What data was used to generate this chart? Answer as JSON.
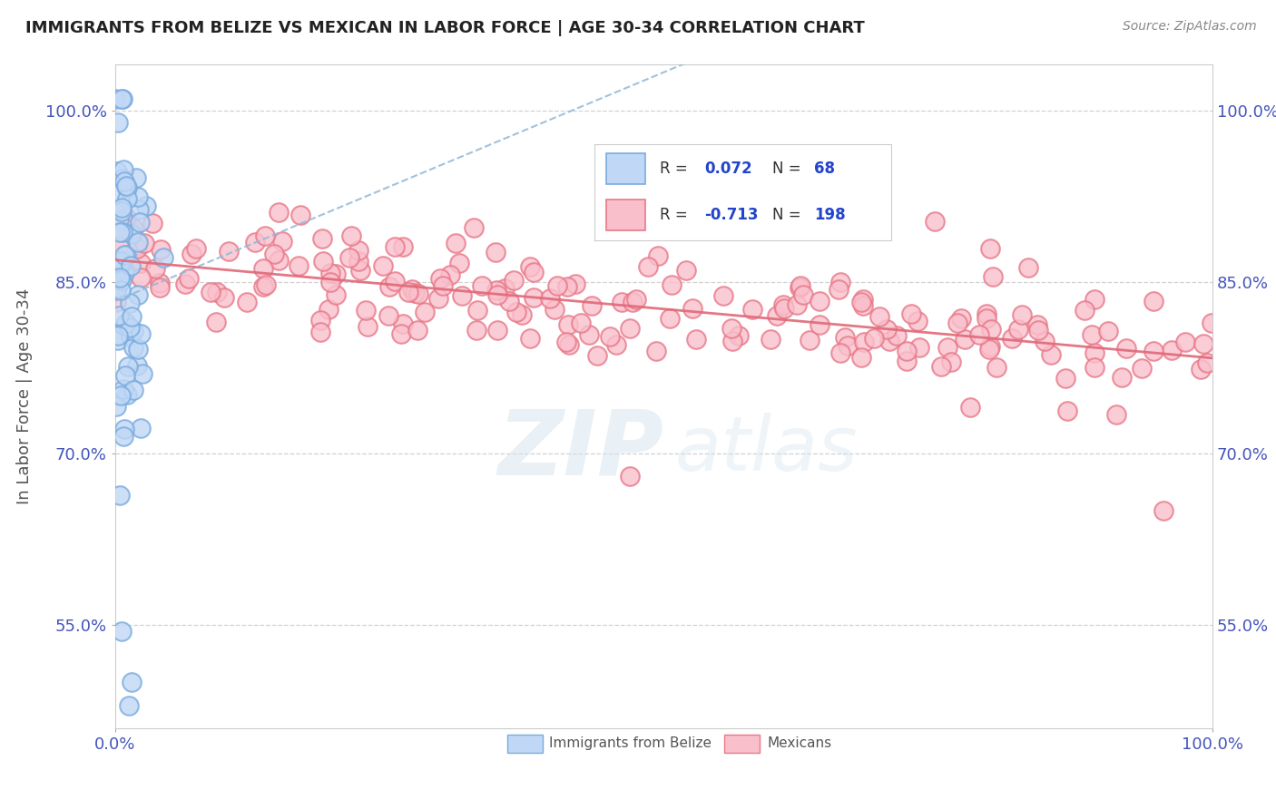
{
  "title": "IMMIGRANTS FROM BELIZE VS MEXICAN IN LABOR FORCE | AGE 30-34 CORRELATION CHART",
  "source_text": "Source: ZipAtlas.com",
  "ylabel": "In Labor Force | Age 30-34",
  "xlim": [
    0.0,
    1.0
  ],
  "ylim": [
    0.46,
    1.04
  ],
  "yticks": [
    0.55,
    0.7,
    0.85,
    1.0
  ],
  "ytick_labels": [
    "55.0%",
    "70.0%",
    "85.0%",
    "100.0%"
  ],
  "xticks": [
    0.0,
    1.0
  ],
  "xtick_labels": [
    "0.0%",
    "100.0%"
  ],
  "watermark_zip": "ZIP",
  "watermark_atlas": "atlas",
  "belize_face": "#c0d8f5",
  "belize_edge": "#7aabdf",
  "mexican_face": "#f9c0cc",
  "mexican_edge": "#e87888",
  "belize_trend_color": "#90b8d8",
  "mexican_trend_color": "#e06878",
  "grid_color": "#cccccc",
  "tick_color": "#4455bb",
  "r_belize": 0.072,
  "n_belize": 68,
  "r_mexican": -0.713,
  "n_mexican": 198,
  "title_color": "#222222",
  "source_color": "#888888",
  "ylabel_color": "#555555",
  "legend_r_label_color": "#444444",
  "legend_val_color": "#2244cc"
}
